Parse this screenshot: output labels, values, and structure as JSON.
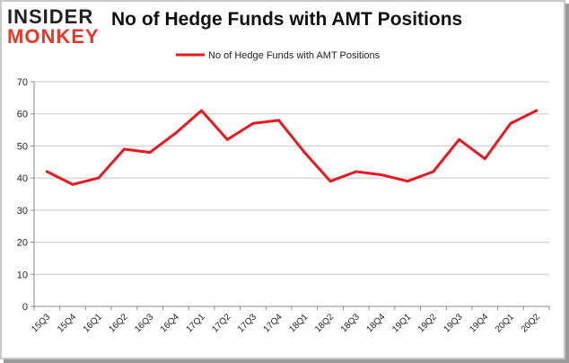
{
  "logo": {
    "line1": "INSIDER",
    "line2": "MONKEY"
  },
  "chart_data": {
    "type": "line",
    "title": "No of Hedge Funds with AMT Positions",
    "xlabel": "",
    "ylabel": "",
    "ylim": [
      0,
      70
    ],
    "yticks": [
      0,
      10,
      20,
      30,
      40,
      50,
      60,
      70
    ],
    "grid": true,
    "legend_position": "top",
    "categories": [
      "15Q3",
      "15Q4",
      "16Q1",
      "16Q2",
      "16Q3",
      "16Q4",
      "17Q1",
      "17Q2",
      "17Q3",
      "17Q4",
      "18Q1",
      "18Q2",
      "18Q3",
      "18Q4",
      "19Q1",
      "19Q2",
      "19Q3",
      "19Q4",
      "20Q1",
      "20Q2"
    ],
    "series": [
      {
        "name": "No of Hedge Funds with AMT Positions",
        "color": "#e8191c",
        "values": [
          42,
          38,
          40,
          49,
          48,
          54,
          61,
          52,
          57,
          58,
          48,
          39,
          42,
          41,
          39,
          42,
          52,
          46,
          57,
          61
        ]
      }
    ]
  }
}
